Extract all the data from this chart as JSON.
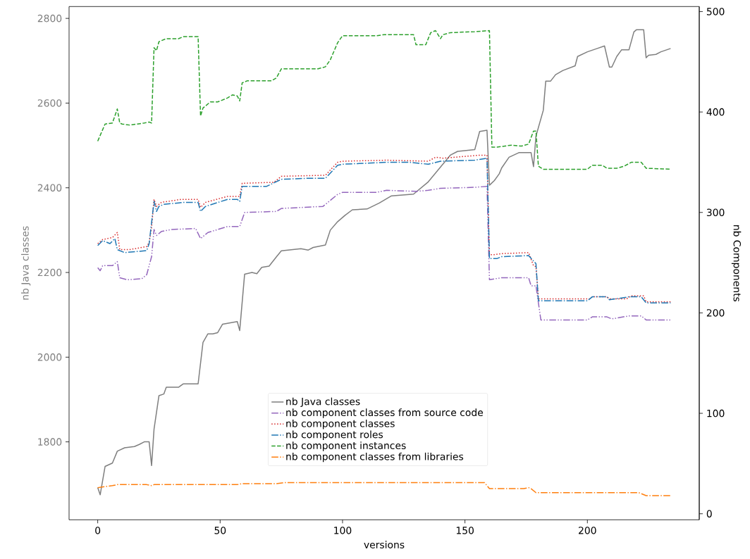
{
  "chart_data": {
    "type": "line",
    "xlabel": "versions",
    "ylabel": "nb Java classes",
    "y2label": "nb Components",
    "xlim": [
      -11.7,
      245.7
    ],
    "ylim": [
      1616,
      2828
    ],
    "y2lim": [
      -6,
      505
    ],
    "xticks": [
      0,
      50,
      100,
      150,
      200
    ],
    "yticks": [
      1800,
      2000,
      2200,
      2400,
      2600,
      2800
    ],
    "y2ticks": [
      0,
      100,
      200,
      300,
      400,
      500
    ],
    "legend": "bottom",
    "series": [
      {
        "name": "nb Java classes",
        "color": "#7f7f7f",
        "axis": "y",
        "line_style": "solid",
        "x": [
          0,
          1,
          3,
          6,
          8,
          11,
          15,
          17,
          19,
          21,
          22,
          23,
          25,
          27,
          28,
          33,
          35,
          41,
          43,
          45,
          47,
          49,
          51,
          57,
          58,
          60,
          63,
          65,
          67,
          70,
          73,
          75,
          83,
          86,
          88,
          93,
          95,
          98,
          101,
          104,
          110,
          115,
          120,
          129,
          135,
          144,
          147,
          154,
          156,
          159,
          160,
          162,
          164,
          165,
          168,
          172,
          177,
          178,
          179,
          182,
          183,
          185,
          187,
          190,
          195,
          196,
          200,
          204,
          207,
          209,
          210,
          212,
          214,
          217,
          219,
          220,
          223,
          224,
          225,
          228,
          230,
          234
        ],
        "values": [
          1692,
          1675,
          1742,
          1750,
          1778,
          1786,
          1789,
          1794,
          1800,
          1800,
          1744,
          1830,
          1909,
          1913,
          1929,
          1929,
          1937,
          1937,
          2035,
          2055,
          2055,
          2058,
          2078,
          2084,
          2063,
          2196,
          2200,
          2197,
          2212,
          2215,
          2237,
          2251,
          2256,
          2253,
          2259,
          2265,
          2300,
          2320,
          2335,
          2348,
          2350,
          2364,
          2381,
          2385,
          2414,
          2477,
          2486,
          2490,
          2533,
          2536,
          2406,
          2417,
          2433,
          2447,
          2472,
          2483,
          2483,
          2450,
          2522,
          2583,
          2652,
          2652,
          2667,
          2677,
          2688,
          2710,
          2721,
          2729,
          2735,
          2685,
          2685,
          2710,
          2726,
          2726,
          2768,
          2773,
          2773,
          2707,
          2713,
          2715,
          2721,
          2729
        ]
      },
      {
        "name": "nb component classes from source code",
        "color": "#9467bd",
        "axis": "y2",
        "line_style": "dashdotdot",
        "x": [
          0,
          1,
          2,
          6,
          8,
          9,
          12,
          18,
          20,
          22,
          23,
          24,
          26,
          30,
          40,
          42,
          45,
          53,
          58,
          60,
          73,
          75,
          92,
          98,
          100,
          114,
          118,
          130,
          135,
          140,
          154,
          159,
          160,
          165,
          176,
          177,
          179,
          181,
          200,
          202,
          208,
          210,
          217,
          222,
          224,
          234
        ],
        "values": [
          245,
          242,
          247,
          247,
          251,
          235,
          233,
          234,
          238,
          256,
          283,
          277,
          281,
          283,
          284,
          274,
          280,
          286,
          286,
          300,
          301,
          304,
          306,
          318,
          320,
          320,
          322,
          321,
          322,
          324,
          325,
          326,
          233,
          235,
          235,
          227,
          227,
          193,
          193,
          196,
          196,
          194,
          197,
          197,
          193,
          193
        ]
      },
      {
        "name": "nb component classes",
        "color": "#d62728",
        "axis": "y2",
        "line_style": "dotted",
        "x": [
          0,
          2,
          6,
          8,
          9,
          13,
          20,
          21,
          22,
          23,
          24,
          26,
          34,
          41,
          42,
          44,
          53,
          58,
          59,
          72,
          75,
          93,
          98,
          100,
          118,
          135,
          138,
          141,
          156,
          159,
          160,
          162,
          165,
          176,
          178,
          179,
          180,
          201,
          202,
          208,
          209,
          216,
          218,
          223,
          224,
          234
        ],
        "values": [
          269,
          273,
          275,
          280,
          263,
          263,
          266,
          270,
          285,
          313,
          306,
          310,
          313,
          313,
          305,
          310,
          316,
          316,
          329,
          330,
          336,
          337,
          350,
          351,
          352,
          351,
          355,
          354,
          357,
          357,
          258,
          258,
          259,
          260,
          247,
          246,
          214,
          214,
          216,
          216,
          214,
          214,
          217,
          217,
          211,
          211
        ]
      },
      {
        "name": "nb component roles",
        "color": "#1f77b4",
        "axis": "y2",
        "line_style": "dashdot",
        "x": [
          0,
          2,
          5,
          7,
          8,
          11,
          20,
          21,
          23,
          24,
          25,
          27,
          35,
          41,
          42,
          44,
          53,
          57,
          58,
          59,
          69,
          75,
          86,
          93,
          98,
          100,
          119,
          127,
          135,
          140,
          154,
          159,
          160,
          163,
          165,
          176,
          179,
          180,
          200,
          202,
          208,
          209,
          217,
          222,
          224,
          234
        ],
        "values": [
          267,
          272,
          269,
          274,
          263,
          260,
          262,
          269,
          311,
          301,
          306,
          308,
          310,
          310,
          301,
          306,
          313,
          313,
          311,
          326,
          326,
          333,
          334,
          334,
          347,
          348,
          350,
          350,
          348,
          351,
          352,
          354,
          254,
          254,
          256,
          257,
          249,
          212,
          212,
          216,
          216,
          213,
          216,
          216,
          210,
          210
        ]
      },
      {
        "name": "nb component instances",
        "color": "#2ca02c",
        "axis": "y2",
        "line_style": "dashed",
        "x": [
          0,
          3,
          6,
          8,
          9,
          10,
          13,
          19,
          21,
          22,
          23,
          24,
          25,
          28,
          33,
          35,
          41,
          42,
          43,
          46,
          49,
          53,
          55,
          57,
          58,
          59,
          61,
          71,
          73,
          75,
          90,
          93,
          95,
          98,
          100,
          114,
          117,
          129,
          130,
          134,
          136,
          138,
          140,
          141,
          144,
          154,
          160,
          161,
          163,
          169,
          173,
          176,
          178,
          179,
          180,
          182,
          200,
          202,
          206,
          208,
          212,
          215,
          218,
          222,
          224,
          234
        ],
        "values": [
          371,
          388,
          389,
          403,
          389,
          388,
          387,
          389,
          390,
          389,
          464,
          461,
          470,
          473,
          473,
          475,
          475,
          396,
          404,
          410,
          410,
          414,
          417,
          416,
          411,
          429,
          431,
          431,
          434,
          443,
          443,
          445,
          452,
          469,
          476,
          476,
          477,
          477,
          467,
          467,
          479,
          481,
          473,
          477,
          479,
          480,
          481,
          365,
          365,
          367,
          366,
          368,
          381,
          381,
          346,
          343,
          343,
          347,
          347,
          344,
          344,
          346,
          350,
          350,
          344,
          343
        ]
      },
      {
        "name": "nb component classes from libraries",
        "color": "#ff7f0e",
        "axis": "y2",
        "line_style": "dashdot",
        "x": [
          0,
          3,
          6,
          8,
          20,
          22,
          23,
          57,
          59,
          73,
          76,
          158,
          160,
          174,
          176,
          177,
          179,
          221,
          224,
          234
        ],
        "values": [
          26,
          27,
          28,
          29,
          29,
          28,
          29,
          29,
          30,
          30,
          31,
          31,
          25,
          25,
          26,
          25,
          21,
          21,
          18,
          18
        ]
      }
    ]
  }
}
